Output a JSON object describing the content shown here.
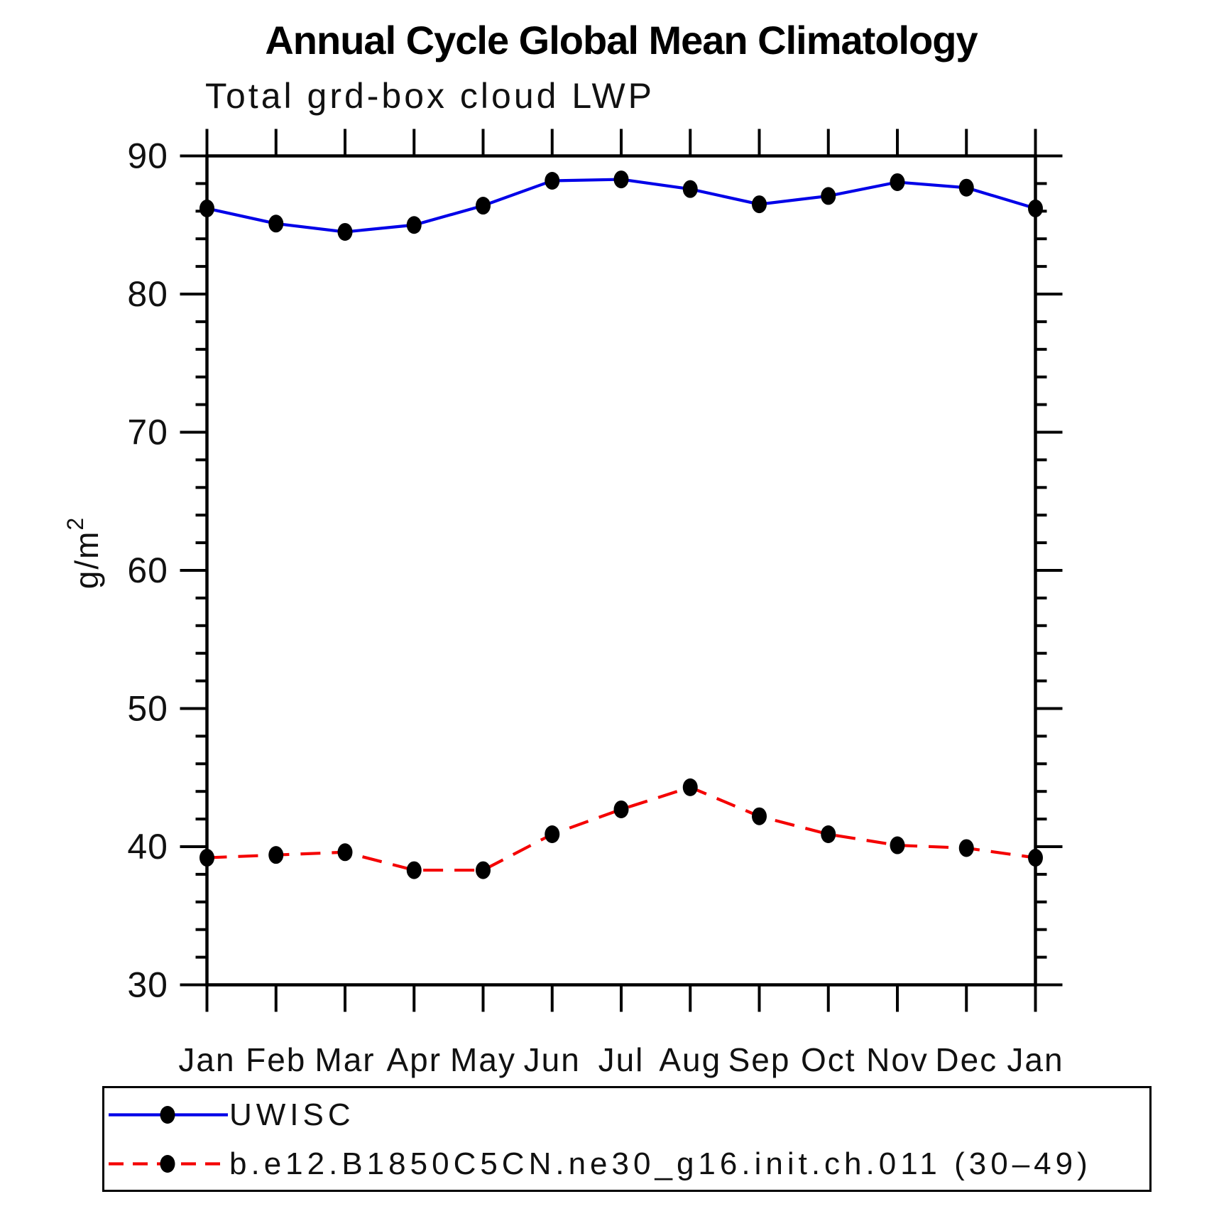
{
  "page": {
    "title": "Annual Cycle Global Mean Climatology",
    "subtitle": "Total grd-box cloud LWP"
  },
  "chart_data": {
    "type": "line",
    "title": "Annual Cycle Global Mean Climatology",
    "subtitle": "Total grd-box cloud LWP",
    "xlabel": "",
    "ylabel": "g/m²",
    "ylabel_base": "g/m",
    "ylabel_sup": "2",
    "categories": [
      "Jan",
      "Feb",
      "Mar",
      "Apr",
      "May",
      "Jun",
      "Jul",
      "Aug",
      "Sep",
      "Oct",
      "Nov",
      "Dec",
      "Jan"
    ],
    "ylim": [
      30,
      90
    ],
    "ytick_labels": [
      "30",
      "40",
      "50",
      "60",
      "70",
      "80",
      "90"
    ],
    "ytick_major_step": 10,
    "ytick_minor_step": 2,
    "grid": false,
    "frame_color": "#000000",
    "legend_position": "bottom-left-box",
    "series": [
      {
        "name": "UWISC",
        "color": "#0000E8",
        "style": "solid",
        "marker": "filled-circle",
        "marker_color": "#000000",
        "values": [
          86.2,
          85.1,
          84.5,
          85.0,
          86.4,
          88.2,
          88.3,
          87.6,
          86.5,
          87.1,
          88.1,
          87.7,
          86.2
        ]
      },
      {
        "name": "b.e12.B1850C5CN.ne30_g16.init.ch.011 (30–49)",
        "color": "#F40000",
        "style": "dashed",
        "marker": "filled-circle",
        "marker_color": "#000000",
        "values": [
          39.2,
          39.4,
          39.6,
          38.3,
          38.3,
          40.9,
          42.7,
          44.3,
          42.2,
          40.9,
          40.1,
          39.9,
          39.2
        ]
      }
    ]
  }
}
